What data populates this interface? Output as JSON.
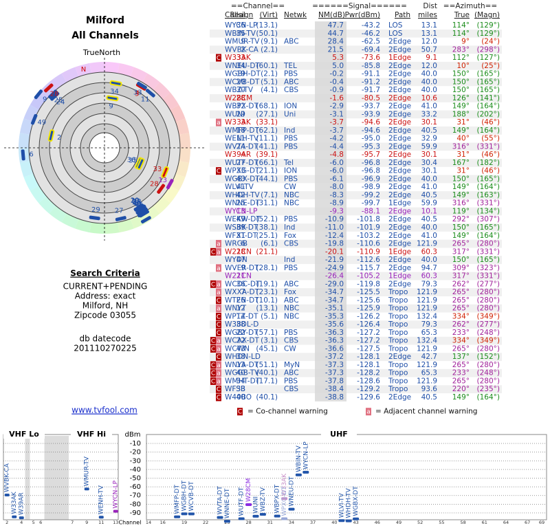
{
  "header": {
    "title": "Milford",
    "subtitle": "All Channels"
  },
  "polar": {
    "north_label": "TrueNorth",
    "magnetic_north": "N"
  },
  "search": {
    "title": "Search Criteria",
    "lines": [
      "CURRENT+PENDING",
      "Address: exact",
      "Milford, NH",
      "Zipcode 03055"
    ],
    "datecode_label": "db datecode",
    "datecode": "201110270225"
  },
  "link": "www.tvfool.com",
  "legend": {
    "co_badge": "C",
    "co_text": "= Co-channel warning",
    "adj_badge": "a",
    "adj_text": "= Adjacent channel warning"
  },
  "table": {
    "group_headers": [
      "==Channel==",
      "======Signal======",
      "Dist",
      "==Azimuth=="
    ],
    "headers": [
      "Callsign",
      "Real",
      "(Virt)",
      "Netwk",
      "NM(dB)",
      "Pwr(dBm)",
      "Path",
      "miles",
      "True",
      "(Magn)"
    ],
    "rows": [
      [
        "WYCN-LP",
        "36",
        "(13.1)",
        null,
        "47.7",
        "-43.2",
        "LOS",
        "13.1",
        "114°",
        "(129°)"
      ],
      [
        "WBIN-TV",
        "35",
        "(50.1)",
        null,
        "44.7",
        "-46.2",
        "LOS",
        "13.1",
        "114°",
        "(129°)"
      ],
      [
        "WMUR-TV",
        "9",
        "(9.1)",
        "ABC",
        "28.4",
        "-62.5",
        "2Edge",
        "12.0",
        "9°",
        "(24°)"
      ],
      [
        "WVBK-CA",
        "2",
        "(2.1)",
        null,
        "21.5",
        "-69.4",
        "2Edge",
        "50.7",
        "283°",
        "(298°)"
      ],
      [
        "W33AK",
        "33",
        null,
        null,
        "5.3",
        "-73.6",
        "1Edge",
        "9.1",
        "112°",
        "(127°)"
      ],
      [
        "WNEU-DT",
        "34",
        "(60.1)",
        "TEL",
        "5.0",
        "-85.8",
        "2Edge",
        "12.0",
        "10°",
        "(25°)"
      ],
      [
        "WGBH-DT",
        "19",
        "(2.1)",
        "PBS",
        "-0.2",
        "-91.1",
        "2Edge",
        "40.0",
        "150°",
        "(165°)"
      ],
      [
        "WCVB-DT",
        "20",
        "(5.1)",
        "ABC",
        "-0.4",
        "-91.2",
        "2Edge",
        "40.0",
        "150°",
        "(165°)"
      ],
      [
        "WBZ-TV",
        "30",
        "(4.1)",
        "CBS",
        "-0.9",
        "-91.7",
        "2Edge",
        "40.0",
        "150°",
        "(165°)"
      ],
      [
        "W28CM",
        "28",
        null,
        null,
        "-1.6",
        "-80.5",
        "2Edge",
        "10.6",
        "126°",
        "(141°)"
      ],
      [
        "WBPX-DT",
        "32",
        "(68.1)",
        "ION",
        "-2.9",
        "-93.7",
        "2Edge",
        "41.0",
        "149°",
        "(164°)"
      ],
      [
        "WUNI",
        "29",
        "(27.1)",
        "Uni",
        "-3.1",
        "-93.9",
        "2Edge",
        "33.2",
        "188°",
        "(202°)"
      ],
      [
        "W33AK",
        "3",
        "(33.1)",
        null,
        "-3.7",
        "-94.6",
        "2Edge",
        "30.1",
        "31°",
        "(46°)"
      ],
      [
        "WMFP-DT",
        "18",
        "(62.1)",
        "Ind",
        "-3.7",
        "-94.6",
        "2Edge",
        "40.5",
        "149°",
        "(164°)"
      ],
      [
        "WENH-TV",
        "11",
        "(11.1)",
        "PBS",
        "-4.2",
        "-95.0",
        "2Edge",
        "32.9",
        "40°",
        "(55°)"
      ],
      [
        "WVTA-DT",
        "24",
        "(41.1)",
        "PBS",
        "-4.4",
        "-95.3",
        "2Edge",
        "59.9",
        "316°",
        "(331°)"
      ],
      [
        "W39AR",
        "4",
        "(39.1)",
        null,
        "-4.8",
        "-95.7",
        "2Edge",
        "30.1",
        "31°",
        "(46°)"
      ],
      [
        "WUTF-DT",
        "27",
        "(66.1)",
        "Tel",
        "-6.0",
        "-96.8",
        "2Edge",
        "30.4",
        "167°",
        "(182°)"
      ],
      [
        "WPXG-DT",
        "33",
        "(21.1)",
        "ION",
        "-6.0",
        "-96.8",
        "2Edge",
        "30.1",
        "31°",
        "(46°)"
      ],
      [
        "WGBX-DT",
        "43",
        "(44.1)",
        "PBS",
        "-6.1",
        "-96.9",
        "2Edge",
        "40.0",
        "150°",
        "(165°)"
      ],
      [
        "WLVI-TV",
        "41",
        null,
        "CW",
        "-8.0",
        "-98.9",
        "2Edge",
        "41.0",
        "149°",
        "(164°)"
      ],
      [
        "WHDH-TV",
        "42",
        "(7.1)",
        "NBC",
        "-8.3",
        "-99.2",
        "2Edge",
        "40.5",
        "149°",
        "(163°)"
      ],
      [
        "WNNE-DT",
        "25",
        "(31.1)",
        "NBC",
        "-8.9",
        "-99.7",
        "1Edge",
        "59.9",
        "316°",
        "(331°)"
      ],
      [
        "WYCN-LP",
        "13",
        null,
        null,
        "-9.3",
        "-88.1",
        "2Edge",
        "10.1",
        "119°",
        "(134°)"
      ],
      [
        "WEKW-DT",
        "49",
        "(52.1)",
        "PBS",
        "-10.9",
        "-101.8",
        "2Edge",
        "40.5",
        "292°",
        "(307°)"
      ],
      [
        "WSBK-DT",
        "39",
        "(38.1)",
        "Ind",
        "-11.0",
        "-101.9",
        "2Edge",
        "40.0",
        "150°",
        "(165°)"
      ],
      [
        "WFXT-DT",
        "31",
        "(25.1)",
        "Fox",
        "-12.4",
        "-103.2",
        "2Edge",
        "41.0",
        "149°",
        "(164°)"
      ],
      [
        "WRGB",
        "6",
        "(6.1)",
        "CBS",
        "-19.8",
        "-110.6",
        "2Edge",
        "121.9",
        "265°",
        "(280°)"
      ],
      [
        "W21CN",
        "28",
        "(21.1)",
        null,
        "-20.1",
        "-110.9",
        "1Edge",
        "60.3",
        "317°",
        "(331°)"
      ],
      [
        "WYDN",
        "47",
        null,
        "Ind",
        "-21.9",
        "-112.6",
        "2Edge",
        "40.0",
        "150°",
        "(165°)"
      ],
      [
        "WVER-DT",
        "9",
        "(28.1)",
        "PBS",
        "-24.9",
        "-115.7",
        "2Edge",
        "94.7",
        "309°",
        "(323°)"
      ],
      [
        "W21CN",
        "21",
        null,
        null,
        "-26.4",
        "-105.2",
        "1Edge",
        "60.3",
        "317°",
        "(331°)"
      ],
      [
        "WCDC-DT",
        "36",
        "(19.1)",
        "ABC",
        "-29.0",
        "-119.8",
        "2Edge",
        "79.3",
        "262°",
        "(277°)"
      ],
      [
        "WXXA-DT",
        "7",
        "(23.1)",
        "Fox",
        "-34.7",
        "-125.5",
        "Tropo",
        "121.9",
        "265°",
        "(280°)"
      ],
      [
        "WTEN-DT",
        "26",
        "(10.1)",
        "ABC",
        "-34.7",
        "-125.6",
        "Tropo",
        "121.9",
        "265°",
        "(280°)"
      ],
      [
        "WNYT",
        "12",
        "(13.1)",
        "NBC",
        "-35.1",
        "-125.9",
        "Tropo",
        "121.9",
        "265°",
        "(280°)"
      ],
      [
        "WPTZ-DT",
        "14",
        "(5.1)",
        "NBC",
        "-35.3",
        "-126.2",
        "Tropo",
        "132.4",
        "334°",
        "(349°)"
      ],
      [
        "W38DL-D",
        "38",
        null,
        null,
        "-35.6",
        "-126.4",
        "Tropo",
        "79.3",
        "262°",
        "(277°)"
      ],
      [
        "WGBY-DT",
        "22",
        "(57.1)",
        "PBS",
        "-36.3",
        "-127.2",
        "Tropo",
        "65.3",
        "233°",
        "(248°)"
      ],
      [
        "WCAX-DT",
        "22",
        "(3.1)",
        "CBS",
        "-36.3",
        "-127.2",
        "Tropo",
        "132.4",
        "334°",
        "(349°)"
      ],
      [
        "WCWN",
        "43",
        "(45.1)",
        "CW",
        "-36.6",
        "-127.5",
        "Tropo",
        "121.9",
        "265°",
        "(280°)"
      ],
      [
        "WHDN-LD",
        "38",
        null,
        null,
        "-37.2",
        "-128.1",
        "2Edge",
        "42.7",
        "137°",
        "(152°)"
      ],
      [
        "WNYA-DT",
        "13",
        "(51.1)",
        "MyN",
        "-37.3",
        "-128.1",
        "Tropo",
        "121.9",
        "265°",
        "(280°)"
      ],
      [
        "WGGB-TV",
        "40",
        "(40.1)",
        "ABC",
        "-37.3",
        "-128.2",
        "Tropo",
        "65.3",
        "233°",
        "(248°)"
      ],
      [
        "WMHT-DT",
        "34",
        "(17.1)",
        "PBS",
        "-37.8",
        "-128.6",
        "Tropo",
        "121.9",
        "265°",
        "(280°)"
      ],
      [
        "WFSB",
        "33",
        null,
        "CBS",
        "-38.4",
        "-129.2",
        "Tropo",
        "93.6",
        "220°",
        "(235°)"
      ],
      [
        "W40BO",
        "40",
        "(40.1)",
        null,
        "-38.8",
        "-129.6",
        "2Edge",
        "40.5",
        "149°",
        "(164°)"
      ]
    ],
    "warnings": [
      [],
      [],
      [],
      [],
      [
        "C"
      ],
      [],
      [],
      [],
      [],
      [],
      [],
      [],
      [
        "a"
      ],
      [],
      [],
      [],
      [],
      [],
      [
        "C"
      ],
      [],
      [],
      [],
      [],
      [],
      [],
      [],
      [],
      [
        "a"
      ],
      [
        "C",
        "a"
      ],
      [],
      [
        "a"
      ],
      [],
      [
        "C",
        "a"
      ],
      [
        "a"
      ],
      [
        "C"
      ],
      [
        "a"
      ],
      [
        "C"
      ],
      [
        "C"
      ],
      [
        "C"
      ],
      [
        "C",
        "a"
      ],
      [
        "C",
        "a"
      ],
      [
        "C"
      ],
      [
        "C",
        "a"
      ],
      [
        "C",
        "a"
      ],
      [
        "C",
        "a"
      ],
      [
        "C"
      ],
      [
        "C"
      ]
    ],
    "colors": [
      "#1f4fa8",
      "#1f4fa8",
      "#1f4fa8",
      "#1f4fa8",
      "#cc1111",
      "#1f4fa8",
      "#1f4fa8",
      "#1f4fa8",
      "#1f4fa8",
      "#cc1111",
      "#1f4fa8",
      "#1f4fa8",
      "#cc1111",
      "#1f4fa8",
      "#1f4fa8",
      "#1f4fa8",
      "#cc1111",
      "#1f4fa8",
      "#1f4fa8",
      "#1f4fa8",
      "#1f4fa8",
      "#1f4fa8",
      "#1f4fa8",
      "#9922bb",
      "#1f4fa8",
      "#1f4fa8",
      "#1f4fa8",
      "#1f4fa8",
      "#cc1111",
      "#1f4fa8",
      "#1f4fa8",
      "#9922bb",
      "#1f4fa8",
      "#1f4fa8",
      "#1f4fa8",
      "#1f4fa8",
      "#1f4fa8",
      "#1f4fa8",
      "#1f4fa8",
      "#1f4fa8",
      "#1f4fa8",
      "#1f4fa8",
      "#1f4fa8",
      "#1f4fa8",
      "#1f4fa8",
      "#1f4fa8",
      "#1f4fa8"
    ],
    "az_colors": [
      "#1a8c1a",
      "#1a8c1a",
      "#d02000",
      "#a0209a",
      "#1a8c1a",
      "#d02000",
      "#1a8c1a",
      "#1a8c1a",
      "#1a8c1a",
      "#1a8c1a",
      "#1a8c1a",
      "#1a8c1a",
      "#d02000",
      "#1a8c1a",
      "#d02000",
      "#a0209a",
      "#d02000",
      "#1a8c1a",
      "#d02000",
      "#1a8c1a",
      "#1a8c1a",
      "#1a8c1a",
      "#a0209a",
      "#1a8c1a",
      "#a0209a",
      "#1a8c1a",
      "#1a8c1a",
      "#a0209a",
      "#a0209a",
      "#1a8c1a",
      "#a0209a",
      "#a0209a",
      "#a0209a",
      "#a0209a",
      "#a0209a",
      "#a0209a",
      "#d02000",
      "#a0209a",
      "#a0209a",
      "#d02000",
      "#a0209a",
      "#1a8c1a",
      "#a0209a",
      "#a0209a",
      "#a0209a",
      "#a0209a",
      "#1a8c1a"
    ]
  },
  "chart_data": {
    "type": "spectrum",
    "band_labels": [
      "VHF Lo",
      "VHF Hi",
      "UHF"
    ],
    "y_label": "dBm",
    "x_label": "Channel",
    "ylim": [
      -100,
      0
    ],
    "yticks": [
      -10,
      -20,
      -30,
      -40,
      -50,
      -60,
      -70,
      -80,
      -90
    ],
    "xticks": [
      2,
      4,
      5,
      6,
      7,
      9,
      11,
      13,
      14,
      16,
      19,
      22,
      25,
      28,
      31,
      34,
      37,
      40,
      43,
      46,
      49,
      52,
      55,
      58,
      61,
      64,
      67,
      69
    ],
    "grid": true,
    "labels": [
      "WYCN-LP",
      "WBIN-TV",
      "WMUR-TV",
      "WVBK-CA",
      "W33AK",
      "WNEU-DT",
      "WGBH-DT",
      "WCVB-DT",
      "WBZ-TV",
      "W28CM",
      "WBPX-DT",
      "WUNI",
      "W33AK",
      "WMFP-DT",
      "WENH-TV",
      "WVTA-DT",
      "W39AR",
      "WUTF-DT",
      "WPXG-DT",
      "WGBX-DT",
      "WLVI-TV",
      "WHDH-TV",
      "WNNE-DT",
      "WYCN-LP"
    ],
    "x": [
      36,
      35,
      9,
      2,
      33,
      34,
      19,
      20,
      30,
      28,
      32,
      29,
      3,
      18,
      11,
      24,
      4,
      27,
      33,
      43,
      41,
      42,
      25,
      13
    ],
    "values": [
      -43.2,
      -46.2,
      -62.5,
      -69.4,
      -73.6,
      -85.8,
      -91.1,
      -91.2,
      -91.7,
      -80.5,
      -93.7,
      -93.9,
      -94.6,
      -94.6,
      -95.0,
      -95.3,
      -95.7,
      -96.8,
      -96.8,
      -96.9,
      -98.9,
      -99.2,
      -99.7,
      -88.1
    ],
    "colors": [
      "#2255aa",
      "#2255aa",
      "#2255aa",
      "#2255aa",
      "#c890c8",
      "#2255aa",
      "#2255aa",
      "#2255aa",
      "#2255aa",
      "#8a2be2",
      "#2255aa",
      "#2255aa",
      "#2255aa",
      "#2255aa",
      "#2255aa",
      "#2255aa",
      "#2255aa",
      "#2255aa",
      "#98a8d8",
      "#2255aa",
      "#2255aa",
      "#2255aa",
      "#2255aa",
      "#9922bb"
    ]
  }
}
